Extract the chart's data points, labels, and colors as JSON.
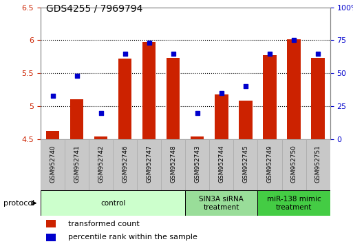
{
  "title": "GDS4255 / 7969794",
  "samples": [
    "GSM952740",
    "GSM952741",
    "GSM952742",
    "GSM952746",
    "GSM952747",
    "GSM952748",
    "GSM952743",
    "GSM952744",
    "GSM952745",
    "GSM952749",
    "GSM952750",
    "GSM952751"
  ],
  "transformed_count": [
    4.62,
    5.1,
    4.54,
    5.72,
    5.97,
    5.73,
    4.54,
    5.18,
    5.08,
    5.77,
    6.01,
    5.73
  ],
  "percentile_rank": [
    33,
    48,
    20,
    65,
    73,
    65,
    20,
    35,
    40,
    65,
    75,
    65
  ],
  "bar_color": "#cc2200",
  "dot_color": "#0000cc",
  "ylim_left": [
    4.5,
    6.5
  ],
  "ylim_right": [
    0,
    100
  ],
  "yticks_left": [
    4.5,
    5.0,
    5.5,
    6.0,
    6.5
  ],
  "ytick_labels_left": [
    "4.5",
    "5",
    "5.5",
    "6",
    "6.5"
  ],
  "yticks_right": [
    0,
    25,
    50,
    75,
    100
  ],
  "ytick_labels_right": [
    "0",
    "25",
    "50",
    "75",
    "100%"
  ],
  "hlines": [
    5.0,
    5.5,
    6.0
  ],
  "groups": [
    {
      "label": "control",
      "start": 0,
      "end": 5,
      "facecolor": "#ccffcc"
    },
    {
      "label": "SIN3A siRNA\ntreatment",
      "start": 6,
      "end": 8,
      "facecolor": "#99dd99"
    },
    {
      "label": "miR-138 mimic\ntreatment",
      "start": 9,
      "end": 11,
      "facecolor": "#44cc44"
    }
  ],
  "protocol_label": "protocol",
  "legend_items": [
    {
      "label": "transformed count",
      "color": "#cc2200"
    },
    {
      "label": "percentile rank within the sample",
      "color": "#0000cc"
    }
  ],
  "bar_width": 0.55,
  "bar_bottom": 4.5,
  "title_fontsize": 10,
  "axis_label_color_left": "#cc2200",
  "axis_label_color_right": "#0000cc",
  "sample_box_color": "#c8c8c8",
  "sample_box_edge": "#aaaaaa"
}
